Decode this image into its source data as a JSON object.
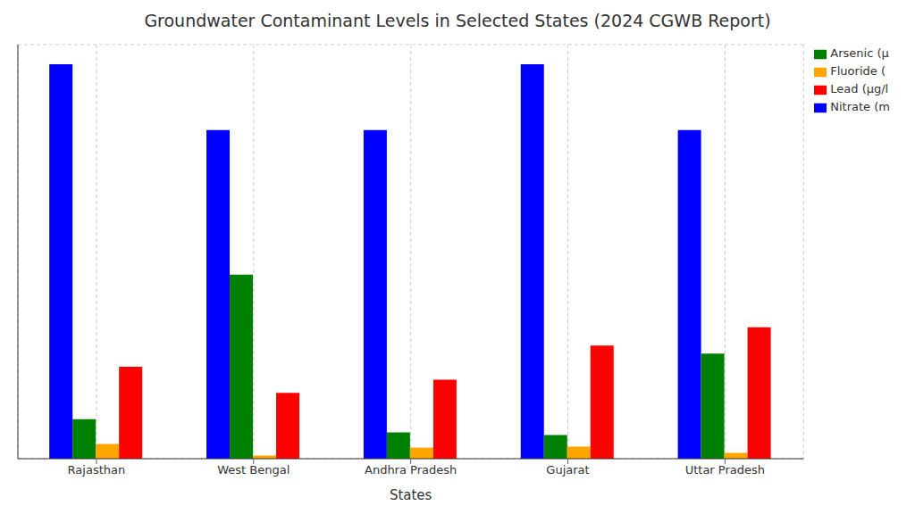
{
  "chart_data": {
    "type": "bar",
    "title": "Groundwater Contaminant Levels in Selected States (2024 CGWB Report)",
    "x_label": "States",
    "categories": [
      "Rajasthan",
      "West Bengal",
      "Andhra Pradesh",
      "Gujarat",
      "Uttar Pradesh"
    ],
    "series": [
      {
        "name": "Nitrate (m",
        "color": "#0000ff",
        "values": [
          75,
          62.5,
          62.5,
          75,
          62.5
        ]
      },
      {
        "name": "Arsenic (µ",
        "color": "#008000",
        "values": [
          7.5,
          35,
          5,
          4.5,
          20
        ]
      },
      {
        "name": "Fluoride (",
        "color": "#ffa500",
        "values": [
          2.8,
          0.6,
          2.1,
          2.3,
          1.1
        ]
      },
      {
        "name": "Lead (µg/l",
        "color": "#ff0000",
        "values": [
          17.5,
          12.5,
          15,
          21.5,
          25
        ]
      }
    ],
    "ylim": [
      0,
      78.75
    ],
    "yticks": [
      0,
      10,
      20,
      30,
      40,
      50,
      60,
      70
    ],
    "grid": true,
    "legend": "upper right",
    "tick_labels": "x"
  }
}
